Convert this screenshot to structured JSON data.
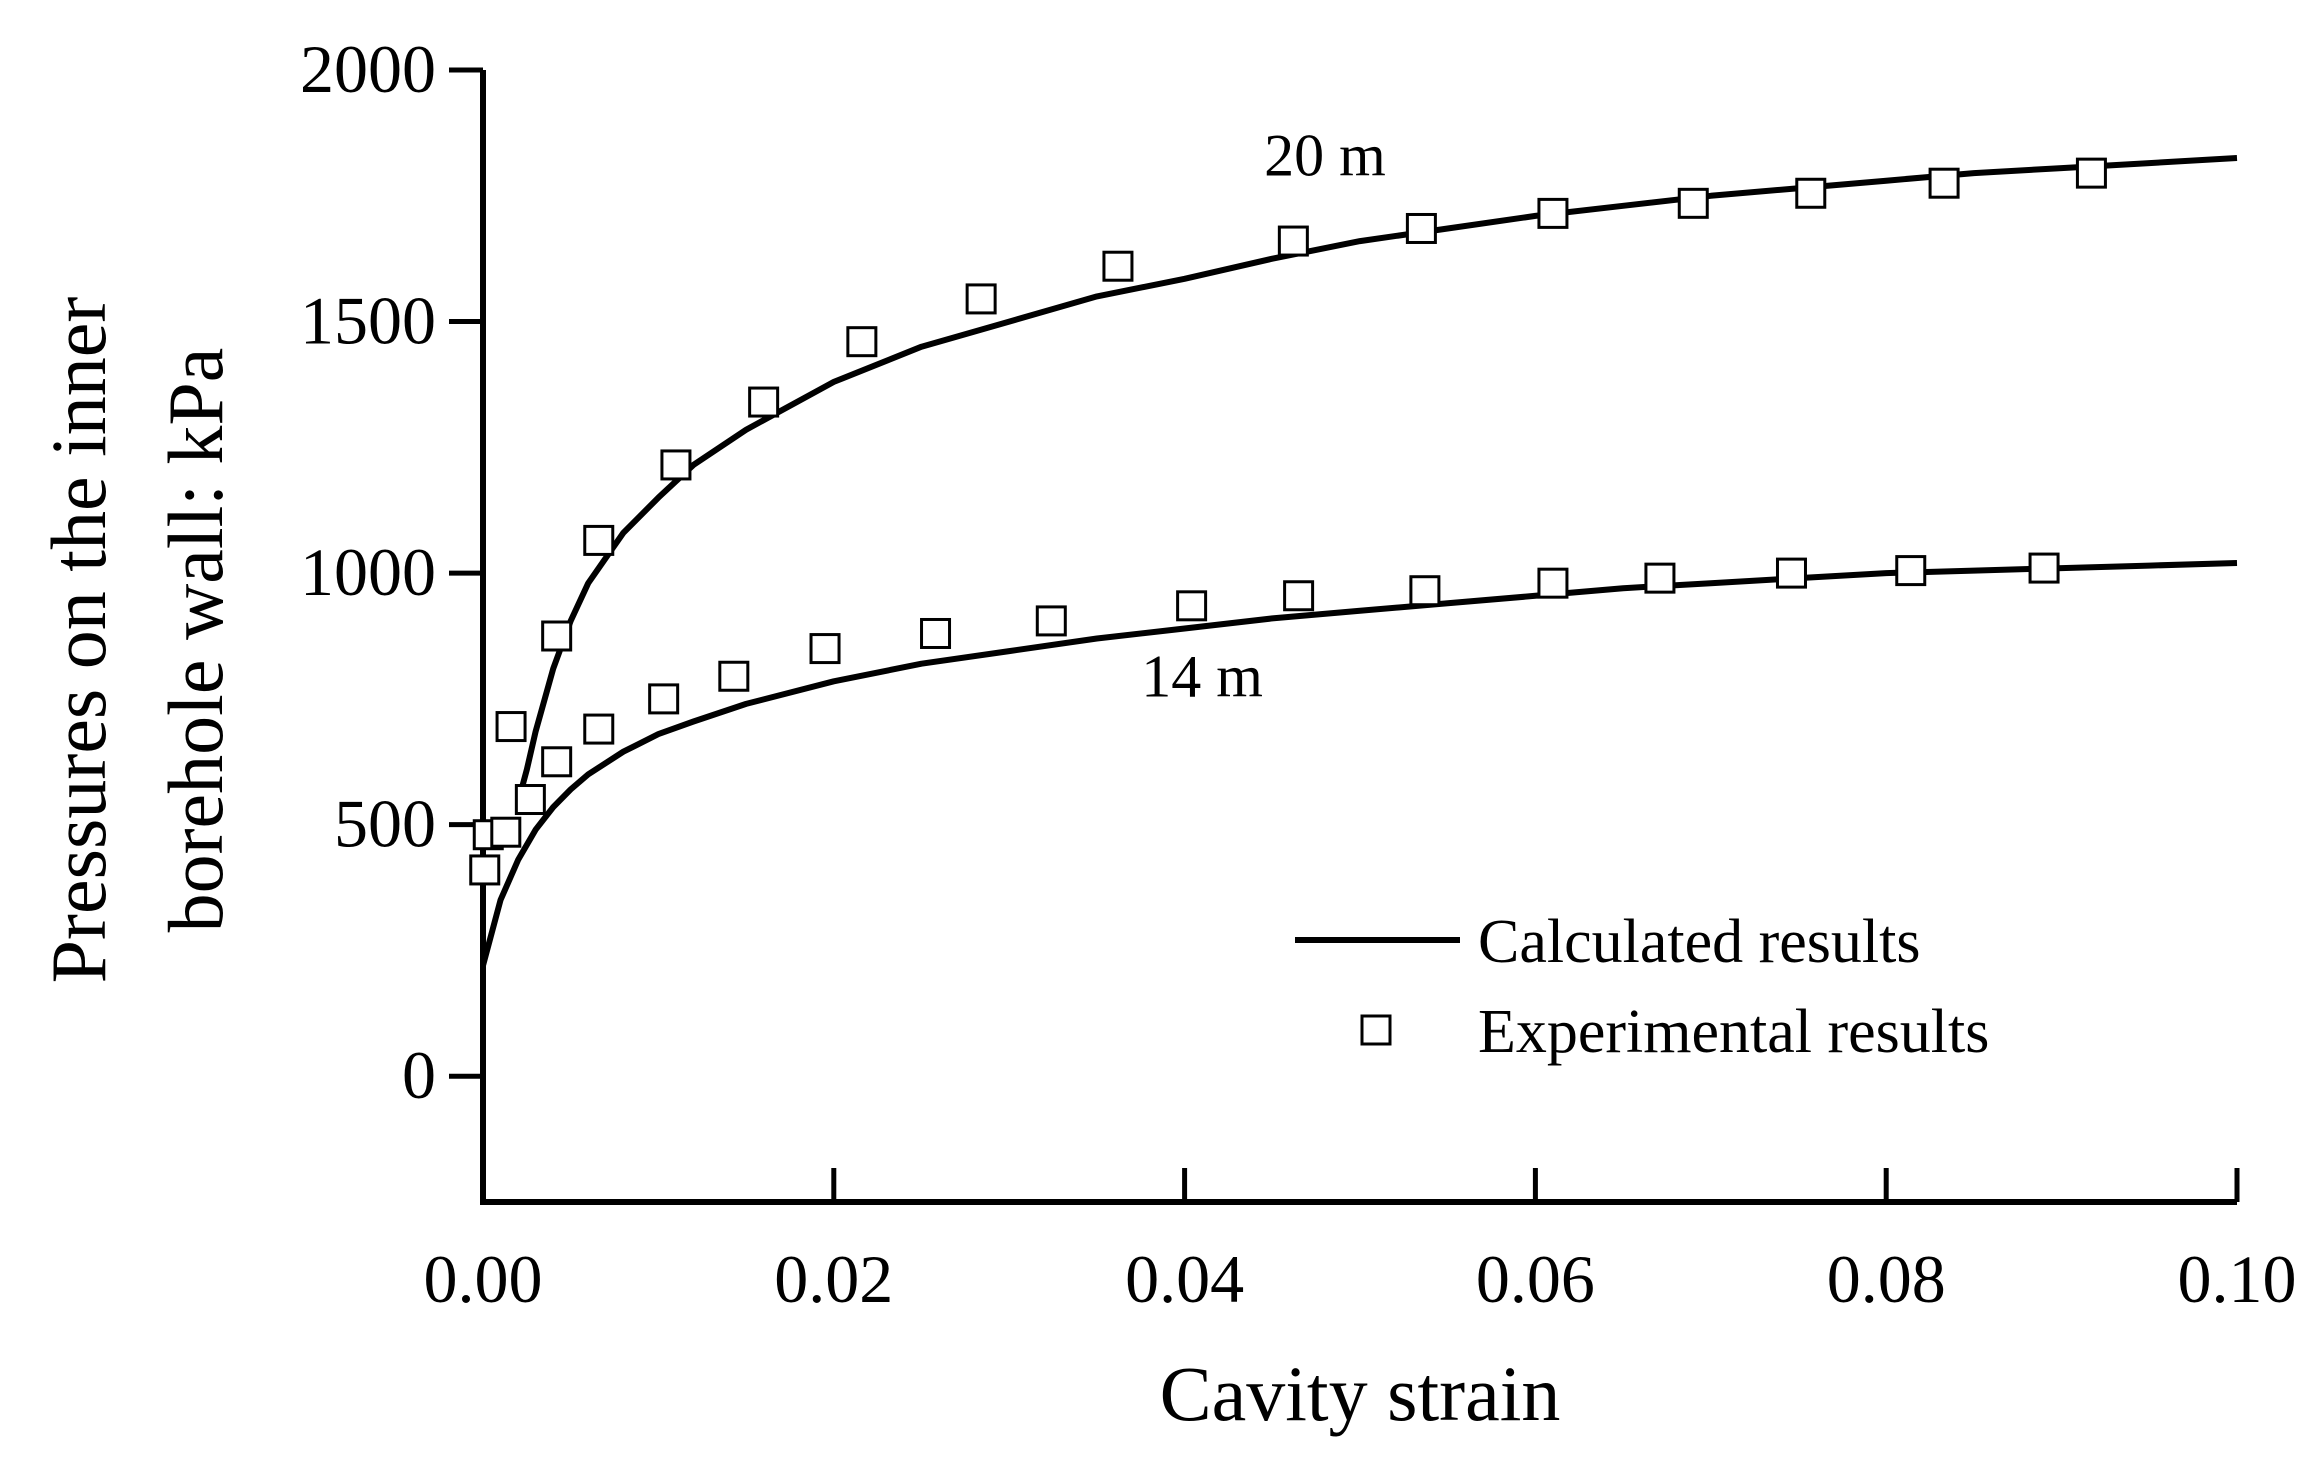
{
  "chart_data": {
    "type": "line",
    "title": "",
    "xlabel": "Cavity strain",
    "ylabel_lines": [
      "Pressures on the inner",
      "borehole wall: kPa"
    ],
    "xlim": [
      0,
      0.1
    ],
    "ylim": [
      -250,
      2000
    ],
    "x_ticks": [
      0.0,
      0.02,
      0.04,
      0.06,
      0.08,
      0.1
    ],
    "x_tick_labels": [
      "0.00",
      "0.02",
      "0.04",
      "0.06",
      "0.08",
      "0.10"
    ],
    "y_ticks": [
      0,
      500,
      1000,
      1500,
      2000
    ],
    "y_tick_labels": [
      "0",
      "500",
      "1000",
      "1500",
      "2000"
    ],
    "grid": false,
    "legend": {
      "position": "bottom-right",
      "entries": [
        {
          "label": "Calculated results",
          "marker": "line"
        },
        {
          "label": "Experimental results",
          "marker": "open-square"
        }
      ]
    },
    "annotations": [
      {
        "text": "20 m",
        "x": 0.048,
        "y": 1790
      },
      {
        "text": "14 m",
        "x": 0.041,
        "y": 755
      }
    ],
    "series": [
      {
        "name": "20 m calculated",
        "kind": "line",
        "x": [
          0.002,
          0.0025,
          0.003,
          0.004,
          0.005,
          0.006,
          0.008,
          0.01,
          0.012,
          0.015,
          0.02,
          0.025,
          0.03,
          0.035,
          0.04,
          0.045,
          0.05,
          0.055,
          0.06,
          0.065,
          0.07,
          0.075,
          0.08,
          0.085,
          0.09,
          0.095,
          0.1
        ],
        "y": [
          545,
          610,
          685,
          810,
          905,
          980,
          1080,
          1150,
          1215,
          1285,
          1380,
          1450,
          1500,
          1550,
          1585,
          1625,
          1660,
          1685,
          1710,
          1730,
          1750,
          1765,
          1780,
          1795,
          1805,
          1815,
          1825
        ]
      },
      {
        "name": "14 m calculated",
        "kind": "line",
        "x": [
          0.0,
          0.001,
          0.002,
          0.003,
          0.004,
          0.005,
          0.006,
          0.008,
          0.01,
          0.012,
          0.015,
          0.02,
          0.025,
          0.03,
          0.035,
          0.04,
          0.045,
          0.05,
          0.055,
          0.06,
          0.065,
          0.07,
          0.075,
          0.08,
          0.085,
          0.09,
          0.095,
          0.1
        ],
        "y": [
          220,
          350,
          430,
          490,
          535,
          570,
          600,
          645,
          680,
          705,
          740,
          785,
          820,
          845,
          870,
          890,
          910,
          925,
          940,
          955,
          970,
          980,
          990,
          1000,
          1005,
          1010,
          1015,
          1020
        ]
      },
      {
        "name": "20 m experimental",
        "kind": "scatter",
        "x": [
          0.0003,
          0.0016,
          0.0042,
          0.0066,
          0.011,
          0.016,
          0.0216,
          0.0284,
          0.0362,
          0.0462,
          0.0535,
          0.061,
          0.069,
          0.0757,
          0.0833,
          0.0917
        ],
        "y": [
          480,
          695,
          875,
          1065,
          1215,
          1340,
          1460,
          1545,
          1610,
          1660,
          1685,
          1715,
          1735,
          1755,
          1775,
          1795
        ]
      },
      {
        "name": "14 m experimental",
        "kind": "scatter",
        "x": [
          0.0001,
          0.0013,
          0.0027,
          0.0042,
          0.0066,
          0.0103,
          0.0143,
          0.0195,
          0.0258,
          0.0324,
          0.0404,
          0.0465,
          0.0537,
          0.061,
          0.0671,
          0.0746,
          0.0814,
          0.089
        ],
        "y": [
          410,
          485,
          550,
          625,
          690,
          750,
          795,
          850,
          880,
          905,
          935,
          955,
          965,
          980,
          990,
          1000,
          1005,
          1010
        ]
      }
    ]
  }
}
